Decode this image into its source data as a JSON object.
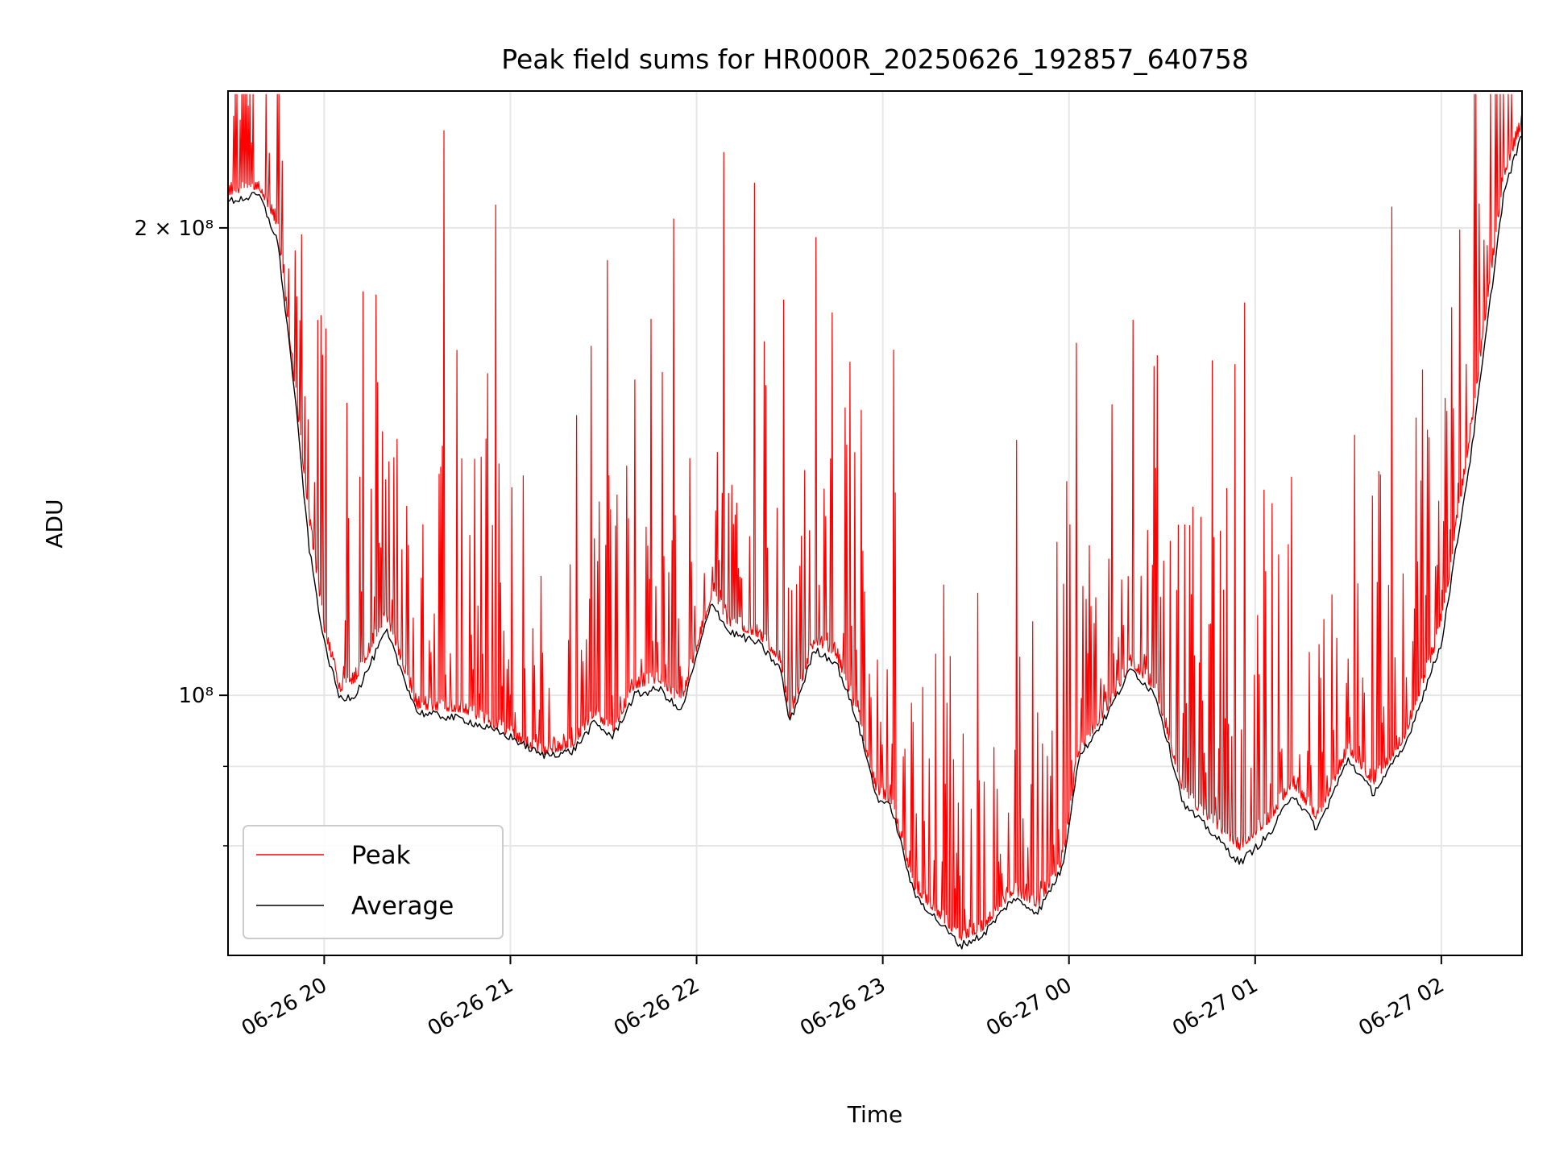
{
  "chart_data": {
    "type": "line",
    "title": "Peak field sums for HR000R_20250626_192857_640758",
    "xlabel": "Time",
    "ylabel": "ADU",
    "y_scale": "log",
    "ylim": [
      68000000,
      245000000
    ],
    "xlim": [
      "2025-06-26 19:29",
      "2025-06-27 02:26"
    ],
    "grid": true,
    "legend_position": "lower-left",
    "x_ticks": [
      {
        "t": "2025-06-26 20:00",
        "label": "06-26 20"
      },
      {
        "t": "2025-06-26 21:00",
        "label": "06-26 21"
      },
      {
        "t": "2025-06-26 22:00",
        "label": "06-26 22"
      },
      {
        "t": "2025-06-26 23:00",
        "label": "06-26 23"
      },
      {
        "t": "2025-06-27 00:00",
        "label": "06-27 00"
      },
      {
        "t": "2025-06-27 01:00",
        "label": "06-27 01"
      },
      {
        "t": "2025-06-27 02:00",
        "label": "06-27 02"
      }
    ],
    "y_ticks": [
      {
        "value": 200000000,
        "label": "2 × 10⁸"
      },
      {
        "value": 100000000,
        "label": "10⁸"
      }
    ],
    "y_minor_gridlines": [
      90000000,
      80000000
    ],
    "series": [
      {
        "name": "Peak",
        "color": "#ff0000",
        "baseline": [
          [
            "2025-06-26 19:29",
            210000000
          ],
          [
            "2025-06-26 19:39",
            212000000
          ],
          [
            "2025-06-26 19:45",
            200000000
          ],
          [
            "2025-06-26 19:55",
            130000000
          ],
          [
            "2025-06-26 20:00",
            110000000
          ],
          [
            "2025-06-26 20:05",
            100500000
          ],
          [
            "2025-06-26 20:10",
            102000000
          ],
          [
            "2025-06-26 20:20",
            112000000
          ],
          [
            "2025-06-26 20:30",
            98000000
          ],
          [
            "2025-06-26 20:45",
            97500000
          ],
          [
            "2025-06-26 21:00",
            94000000
          ],
          [
            "2025-06-26 21:10",
            91500000
          ],
          [
            "2025-06-26 21:20",
            92500000
          ],
          [
            "2025-06-26 21:27",
            97000000
          ],
          [
            "2025-06-26 21:33",
            94500000
          ],
          [
            "2025-06-26 21:40",
            101000000
          ],
          [
            "2025-06-26 21:48",
            102000000
          ],
          [
            "2025-06-26 21:55",
            98500000
          ],
          [
            "2025-06-26 22:05",
            116000000
          ],
          [
            "2025-06-26 22:10",
            111000000
          ],
          [
            "2025-06-26 22:20",
            109000000
          ],
          [
            "2025-06-26 22:27",
            105000000
          ],
          [
            "2025-06-26 22:30",
            96500000
          ],
          [
            "2025-06-26 22:38",
            108000000
          ],
          [
            "2025-06-26 22:45",
            106000000
          ],
          [
            "2025-06-26 22:52",
            96500000
          ],
          [
            "2025-06-26 22:58",
            86500000
          ],
          [
            "2025-06-26 23:03",
            85000000
          ],
          [
            "2025-06-26 23:10",
            75000000
          ],
          [
            "2025-06-26 23:18",
            72000000
          ],
          [
            "2025-06-26 23:25",
            69500000
          ],
          [
            "2025-06-26 23:32",
            70500000
          ],
          [
            "2025-06-26 23:42",
            74500000
          ],
          [
            "2025-06-26 23:50",
            73000000
          ],
          [
            "2025-06-26 23:58",
            78000000
          ],
          [
            "2025-06-27 00:03",
            91500000
          ],
          [
            "2025-06-27 00:12",
            97500000
          ],
          [
            "2025-06-27 00:20",
            104500000
          ],
          [
            "2025-06-27 00:28",
            100500000
          ],
          [
            "2025-06-27 00:37",
            86000000
          ],
          [
            "2025-06-27 00:45",
            83000000
          ],
          [
            "2025-06-27 00:55",
            79500000
          ],
          [
            "2025-06-27 01:05",
            83000000
          ],
          [
            "2025-06-27 01:12",
            87500000
          ],
          [
            "2025-06-27 01:20",
            83000000
          ],
          [
            "2025-06-27 01:30",
            92000000
          ],
          [
            "2025-06-27 01:38",
            87500000
          ],
          [
            "2025-06-27 01:48",
            93500000
          ],
          [
            "2025-06-27 02:00",
            110000000
          ],
          [
            "2025-06-27 02:10",
            150000000
          ],
          [
            "2025-06-27 02:20",
            215000000
          ],
          [
            "2025-06-27 02:26",
            233000000
          ]
        ]
      },
      {
        "name": "Average",
        "color": "#000000",
        "values": [
          [
            "2025-06-26 19:29",
            208000000
          ],
          [
            "2025-06-26 19:39",
            210000000
          ],
          [
            "2025-06-26 19:45",
            196000000
          ],
          [
            "2025-06-26 19:50",
            160000000
          ],
          [
            "2025-06-26 19:55",
            125000000
          ],
          [
            "2025-06-26 20:00",
            108000000
          ],
          [
            "2025-06-26 20:05",
            99500000
          ],
          [
            "2025-06-26 20:10",
            100000000
          ],
          [
            "2025-06-26 20:20",
            110000000
          ],
          [
            "2025-06-26 20:30",
            97500000
          ],
          [
            "2025-06-26 20:45",
            96500000
          ],
          [
            "2025-06-26 21:00",
            94000000
          ],
          [
            "2025-06-26 21:10",
            91500000
          ],
          [
            "2025-06-26 21:20",
            92000000
          ],
          [
            "2025-06-26 21:27",
            96000000
          ],
          [
            "2025-06-26 21:33",
            94000000
          ],
          [
            "2025-06-26 21:40",
            100000000
          ],
          [
            "2025-06-26 21:48",
            101000000
          ],
          [
            "2025-06-26 21:55",
            97500000
          ],
          [
            "2025-06-26 22:05",
            115000000
          ],
          [
            "2025-06-26 22:10",
            110000000
          ],
          [
            "2025-06-26 22:20",
            108000000
          ],
          [
            "2025-06-26 22:27",
            104000000
          ],
          [
            "2025-06-26 22:30",
            96000000
          ],
          [
            "2025-06-26 22:38",
            107000000
          ],
          [
            "2025-06-26 22:45",
            105000000
          ],
          [
            "2025-06-26 22:52",
            96000000
          ],
          [
            "2025-06-26 22:58",
            86000000
          ],
          [
            "2025-06-26 23:03",
            84500000
          ],
          [
            "2025-06-26 23:10",
            74500000
          ],
          [
            "2025-06-26 23:18",
            71500000
          ],
          [
            "2025-06-26 23:25",
            69000000
          ],
          [
            "2025-06-26 23:32",
            70000000
          ],
          [
            "2025-06-26 23:42",
            74000000
          ],
          [
            "2025-06-26 23:50",
            72500000
          ],
          [
            "2025-06-26 23:58",
            77500000
          ],
          [
            "2025-06-27 00:03",
            91000000
          ],
          [
            "2025-06-27 00:12",
            97000000
          ],
          [
            "2025-06-27 00:20",
            104000000
          ],
          [
            "2025-06-27 00:28",
            100000000
          ],
          [
            "2025-06-27 00:37",
            85000000
          ],
          [
            "2025-06-27 00:45",
            82000000
          ],
          [
            "2025-06-27 00:55",
            78000000
          ],
          [
            "2025-06-27 01:05",
            81500000
          ],
          [
            "2025-06-27 01:12",
            86500000
          ],
          [
            "2025-06-27 01:20",
            82000000
          ],
          [
            "2025-06-27 01:30",
            91000000
          ],
          [
            "2025-06-27 01:38",
            86500000
          ],
          [
            "2025-06-27 01:48",
            92500000
          ],
          [
            "2025-06-27 02:00",
            108000000
          ],
          [
            "2025-06-27 02:10",
            145000000
          ],
          [
            "2025-06-27 02:20",
            210000000
          ],
          [
            "2025-06-27 02:26",
            230000000
          ]
        ]
      }
    ]
  }
}
